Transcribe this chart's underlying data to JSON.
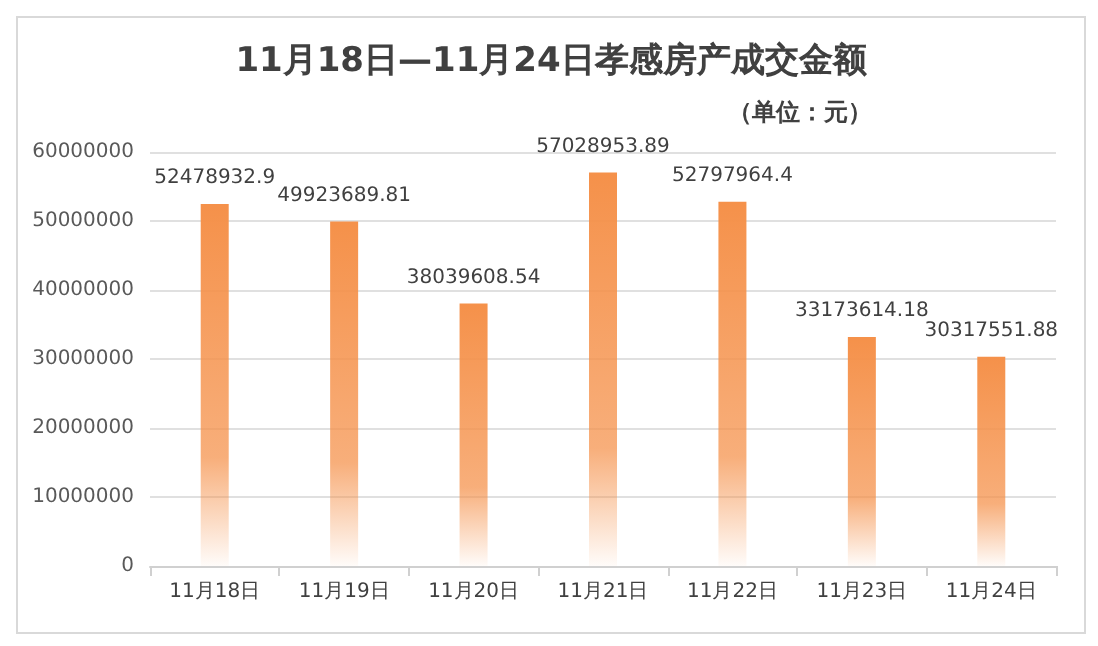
{
  "chart_data": {
    "type": "bar",
    "title": "11月18日—11月24日孝感房产成交金额",
    "subtitle": "（单位：元）",
    "categories": [
      "11月18日",
      "11月19日",
      "11月20日",
      "11月21日",
      "11月22日",
      "11月23日",
      "11月24日"
    ],
    "values": [
      52478932.9,
      49923689.81,
      38039608.54,
      57028953.89,
      52797964.4,
      33173614.18,
      30317551.88
    ],
    "color": "#f5914a",
    "ylim": [
      0,
      60000000
    ],
    "yticks": [
      0,
      10000000,
      20000000,
      30000000,
      40000000,
      50000000,
      60000000
    ],
    "grid": "y",
    "data_labels": true
  }
}
